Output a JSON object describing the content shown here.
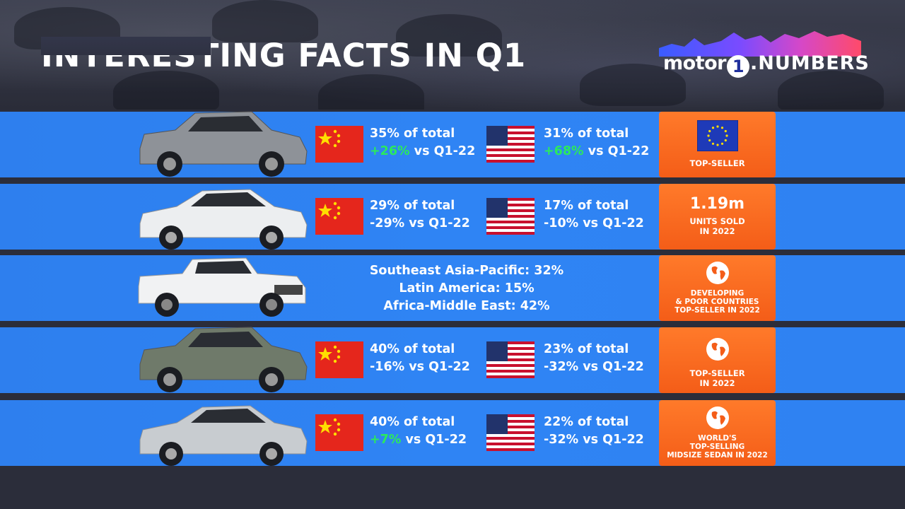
{
  "header": {
    "title": "INTERESTING FACTS IN Q1",
    "logo": {
      "part1": "motor",
      "part2": "1",
      "part3": ".NUMBERS"
    }
  },
  "rows": [
    {
      "car": "white-crossover",
      "cn": {
        "share": "35% of total",
        "change": "+26%",
        "suffix": " vs Q1-22",
        "positive": true
      },
      "us": {
        "share": "31% of total",
        "change": "+68%",
        "suffix": " vs Q1-22",
        "positive": true
      },
      "badge": {
        "icon": "eu-flag-icon",
        "lines": [
          "TOP-SELLER"
        ]
      }
    },
    {
      "car": "white-sedan",
      "cn": {
        "share": "29% of total",
        "change": "-29%",
        "suffix": " vs Q1-22",
        "positive": false
      },
      "us": {
        "share": "17% of total",
        "change": "-10%",
        "suffix": " vs Q1-22",
        "positive": false
      },
      "badge": {
        "big": "1.19m",
        "lines": [
          "UNITS SOLD",
          "IN 2022"
        ]
      }
    },
    {
      "car": "white-pickup",
      "regions": [
        "Southeast Asia-Pacific: 32%",
        "Latin America: 15%",
        "Africa-Middle East: 42%"
      ],
      "badge": {
        "icon": "globe-icon",
        "lines": [
          "DEVELOPING",
          "& POOR COUNTRIES",
          "TOP-SELLER IN 2022"
        ]
      }
    },
    {
      "car": "green-suv",
      "cn": {
        "share": "40% of total",
        "change": "-16%",
        "suffix": " vs Q1-22",
        "positive": false
      },
      "us": {
        "share": "23% of total",
        "change": "-32%",
        "suffix": " vs Q1-22",
        "positive": false
      },
      "badge": {
        "icon": "globe-icon",
        "lines": [
          "TOP-SELLER",
          "IN 2022"
        ]
      }
    },
    {
      "car": "silver-sedan",
      "cn": {
        "share": "40% of total",
        "change": "+7%",
        "suffix": " vs Q1-22",
        "positive": true
      },
      "us": {
        "share": "22% of total",
        "change": "-32%",
        "suffix": " vs Q1-22",
        "positive": false
      },
      "badge": {
        "icon": "globe-icon",
        "lines": [
          "WORLD'S",
          "TOP-SELLING",
          "MIDSIZE SEDAN IN 2022"
        ]
      }
    }
  ],
  "colors": {
    "row_blue": "#2f84f4",
    "badge_orange": "#f45d18",
    "positive_green": "#2bea5c",
    "background": "#2b2d3a"
  }
}
